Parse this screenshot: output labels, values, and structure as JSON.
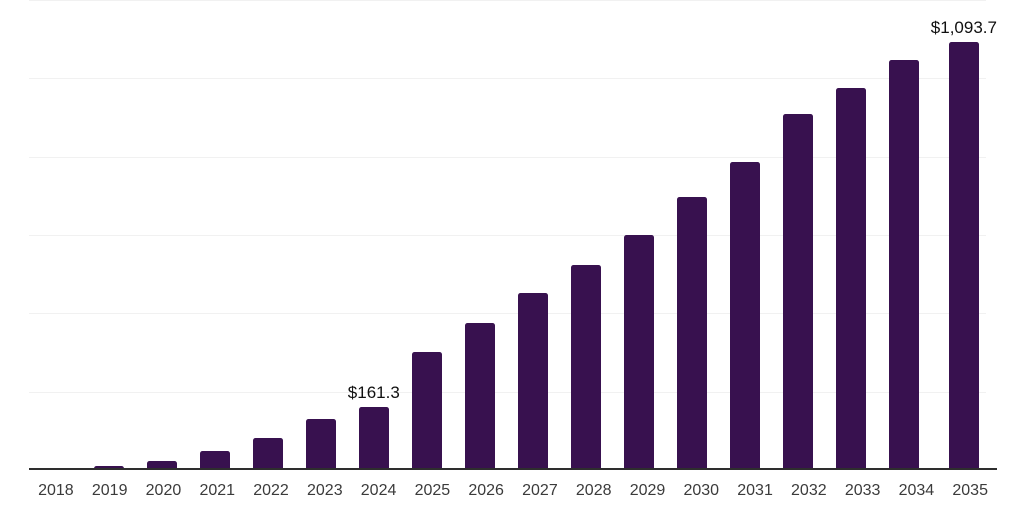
{
  "chart_data": {
    "type": "bar",
    "categories": [
      "2018",
      "2019",
      "2020",
      "2021",
      "2022",
      "2023",
      "2024",
      "2025",
      "2026",
      "2027",
      "2028",
      "2029",
      "2030",
      "2031",
      "2032",
      "2033",
      "2034",
      "2035"
    ],
    "values": [
      5,
      11,
      24,
      49,
      83,
      130,
      161.3,
      302,
      376,
      452,
      524,
      601,
      697,
      787,
      910,
      975,
      1046,
      1093.7
    ],
    "bar_labels": [
      "",
      "",
      "",
      "",
      "",
      "",
      "$161.3",
      "",
      "",
      "",
      "",
      "",
      "",
      "",
      "",
      "",
      "",
      "$1,093.7"
    ],
    "title": "",
    "xlabel": "",
    "ylabel": "",
    "ylim": [
      0,
      1200
    ],
    "gridline_step": 200,
    "grid": "horizontal",
    "legend": "none",
    "y_tick_labels_visible": false,
    "colors": {
      "bar": "#38114F",
      "axis_line": "#2E2E2E",
      "gridline": "#F1F1F1",
      "tick_label": "#3B3B3B",
      "data_label": "#101010",
      "background": "#FFFFFF"
    }
  }
}
